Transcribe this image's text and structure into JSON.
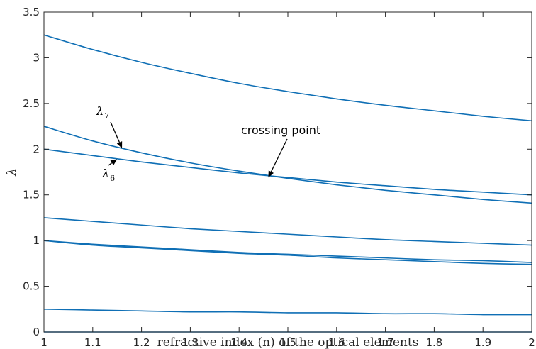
{
  "chart_data": {
    "type": "line",
    "xlabel": "refractive index (n) of the optical elements",
    "ylabel": "λ",
    "xlim": [
      1,
      2
    ],
    "ylim": [
      0,
      3.5
    ],
    "x_ticks": [
      "1",
      "1.1",
      "1.2",
      "1.3",
      "1.4",
      "1.5",
      "1.6",
      "1.7",
      "1.8",
      "1.9",
      "2"
    ],
    "y_ticks": [
      "0",
      "0.5",
      "1",
      "1.5",
      "2",
      "2.5",
      "3",
      "3.5"
    ],
    "grid": false,
    "line_color": "#0f6fb5",
    "x": [
      1.0,
      1.1,
      1.2,
      1.3,
      1.4,
      1.5,
      1.6,
      1.7,
      1.8,
      1.9,
      2.0
    ],
    "series": [
      {
        "values": [
          3.25,
          3.09,
          2.95,
          2.83,
          2.72,
          2.63,
          2.55,
          2.48,
          2.42,
          2.36,
          2.31
        ]
      },
      {
        "values": [
          2.25,
          2.09,
          1.96,
          1.85,
          1.76,
          1.68,
          1.61,
          1.55,
          1.5,
          1.45,
          1.41
        ]
      },
      {
        "values": [
          2.0,
          1.93,
          1.86,
          1.8,
          1.74,
          1.69,
          1.64,
          1.6,
          1.56,
          1.53,
          1.5
        ]
      },
      {
        "values": [
          1.25,
          1.21,
          1.17,
          1.13,
          1.1,
          1.07,
          1.04,
          1.01,
          0.99,
          0.97,
          0.95
        ]
      },
      {
        "values": [
          1.0,
          0.96,
          0.93,
          0.9,
          0.87,
          0.85,
          0.83,
          0.81,
          0.79,
          0.78,
          0.76
        ]
      },
      {
        "values": [
          1.0,
          0.95,
          0.92,
          0.89,
          0.86,
          0.84,
          0.81,
          0.79,
          0.77,
          0.75,
          0.74
        ]
      },
      {
        "values": [
          0.25,
          0.24,
          0.23,
          0.22,
          0.22,
          0.21,
          0.21,
          0.2,
          0.2,
          0.19,
          0.19
        ]
      },
      {
        "values": [
          0,
          0,
          0,
          0,
          0,
          0,
          0,
          0,
          0,
          0,
          0
        ]
      }
    ],
    "annotations": [
      {
        "text": "crossing point",
        "at": [
          1.46,
          1.69
        ]
      },
      {
        "text": "λ",
        "subscript": "7",
        "at": [
          1.16,
          2.01
        ]
      },
      {
        "text": "λ",
        "subscript": "6",
        "at": [
          1.15,
          1.89
        ]
      }
    ]
  }
}
